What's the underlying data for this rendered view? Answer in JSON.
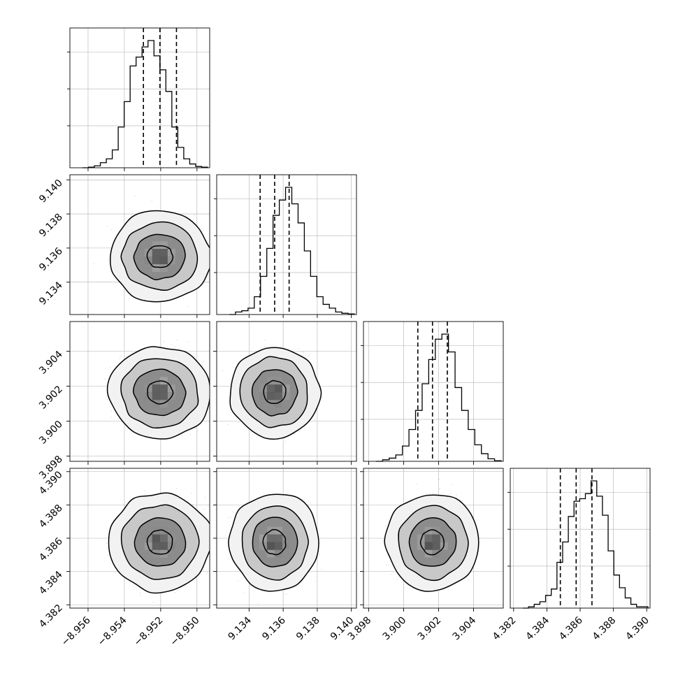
{
  "chart_data": {
    "type": "corner",
    "params": [
      {
        "range": [
          -8.957,
          -8.9493
        ],
        "ticks": [
          -8.956,
          -8.954,
          -8.952,
          -8.95
        ],
        "tick_labels": [
          "−8.956",
          "−8.954",
          "−8.952",
          "−8.950"
        ],
        "quantiles": [
          -8.95295,
          -8.95204,
          -8.95113
        ],
        "median": -8.95204,
        "sigma": 0.00091
      },
      {
        "range": [
          9.1321,
          9.1403
        ],
        "ticks": [
          9.134,
          9.136,
          9.138,
          9.14
        ],
        "tick_labels": [
          "9.134",
          "9.136",
          "9.138",
          "9.140"
        ],
        "quantiles": [
          9.13465,
          9.1355,
          9.13635
        ],
        "median": 9.1355,
        "sigma": 0.00085
      },
      {
        "range": [
          3.8977,
          3.9057
        ],
        "ticks": [
          3.898,
          3.9,
          3.902,
          3.904
        ],
        "tick_labels": [
          "3.898",
          "3.900",
          "3.902",
          "3.904"
        ],
        "quantiles": [
          3.90081,
          3.90165,
          3.9025
        ],
        "median": 3.90165,
        "sigma": 0.00085
      },
      {
        "range": [
          4.3818,
          4.3902
        ],
        "ticks": [
          4.382,
          4.384,
          4.386,
          4.388,
          4.39
        ],
        "tick_labels": [
          "4.382",
          "4.384",
          "4.386",
          "4.388",
          "4.390"
        ],
        "quantiles": [
          4.38481,
          4.38576,
          4.38671
        ],
        "median": 4.38576,
        "sigma": 0.00095
      }
    ],
    "histograms": [
      [
        0,
        0.005,
        0.015,
        0.04,
        0.07,
        0.14,
        0.32,
        0.52,
        0.8,
        0.87,
        0.95,
        1.0,
        0.88,
        0.77,
        0.6,
        0.32,
        0.16,
        0.07,
        0.03,
        0.01,
        0.005
      ],
      [
        0,
        0.02,
        0.03,
        0.05,
        0.14,
        0.3,
        0.52,
        0.78,
        0.9,
        1.0,
        0.87,
        0.72,
        0.5,
        0.3,
        0.14,
        0.08,
        0.05,
        0.02,
        0.01,
        0.005
      ],
      [
        0,
        0.012,
        0.025,
        0.05,
        0.12,
        0.25,
        0.4,
        0.61,
        0.8,
        0.96,
        1.0,
        0.86,
        0.58,
        0.4,
        0.25,
        0.13,
        0.06,
        0.02,
        0.005
      ],
      [
        0,
        0.01,
        0.03,
        0.05,
        0.1,
        0.15,
        0.36,
        0.52,
        0.72,
        0.84,
        0.86,
        0.9,
        1.0,
        0.88,
        0.73,
        0.45,
        0.26,
        0.16,
        0.08,
        0.03,
        0.01,
        0.01
      ]
    ],
    "contour_levels_sigma": [
      0.5,
      1.0,
      1.5,
      2.0
    ],
    "quantile_levels": [
      0.16,
      0.5,
      0.84
    ],
    "colors": {
      "axes": "#000000",
      "grid": "#b0b0b0",
      "samples": "#7f7f7f",
      "contour": "#000000"
    },
    "grid": true,
    "legend": "none"
  }
}
